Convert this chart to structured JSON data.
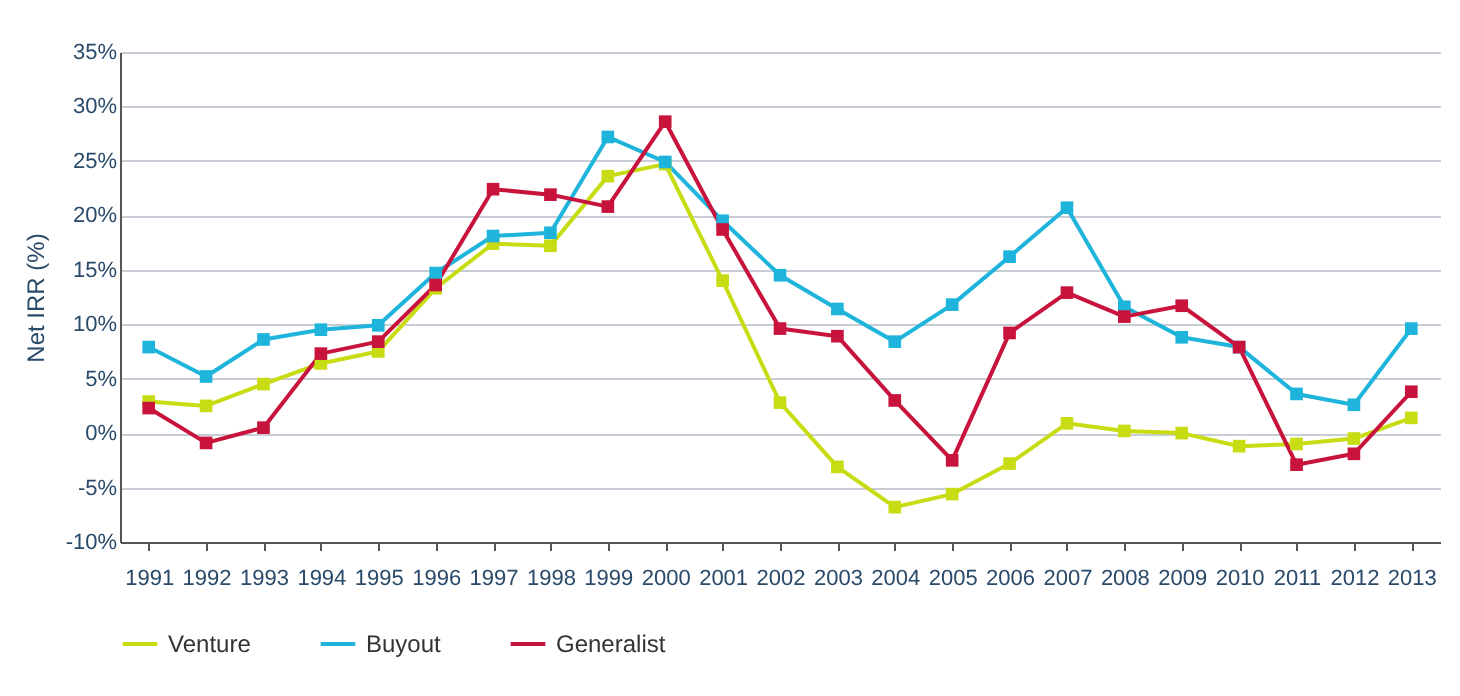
{
  "chart_data": {
    "type": "line",
    "ylabel": "Net IRR (%)",
    "categories": [
      "1991",
      "1992",
      "1993",
      "1994",
      "1995",
      "1996",
      "1997",
      "1998",
      "1999",
      "2000",
      "2001",
      "2002",
      "2003",
      "2004",
      "2005",
      "2006",
      "2007",
      "2008",
      "2009",
      "2010",
      "2011",
      "2012",
      "2013"
    ],
    "series": [
      {
        "name": "Venture",
        "color": "#c8dc14",
        "values": [
          2.9,
          2.5,
          4.5,
          6.4,
          7.5,
          13.3,
          17.4,
          17.2,
          23.6,
          24.7,
          14.0,
          2.8,
          -3.1,
          -6.8,
          -5.6,
          -2.8,
          0.9,
          0.2,
          0.0,
          -1.2,
          -1.0,
          -0.5,
          1.4
        ]
      },
      {
        "name": "Buyout",
        "color": "#1eb4dc",
        "values": [
          7.9,
          5.2,
          8.6,
          9.5,
          9.9,
          14.7,
          18.1,
          18.4,
          27.2,
          24.9,
          19.5,
          14.5,
          11.4,
          8.4,
          11.8,
          16.2,
          20.7,
          11.6,
          8.8,
          7.9,
          3.6,
          2.6,
          9.6
        ]
      },
      {
        "name": "Generalist",
        "color": "#c8143c",
        "values": [
          2.3,
          -0.9,
          0.5,
          7.3,
          8.4,
          13.6,
          22.4,
          21.9,
          20.8,
          28.6,
          18.7,
          9.6,
          8.9,
          3.0,
          -2.5,
          9.2,
          12.9,
          10.7,
          11.7,
          7.9,
          -2.9,
          -1.9,
          3.8
        ]
      }
    ],
    "ylim": [
      -10,
      35
    ],
    "yticks": [
      {
        "value": -10,
        "label": "-10%"
      },
      {
        "value": -5,
        "label": "-5%"
      },
      {
        "value": 0,
        "label": "0%"
      },
      {
        "value": 5,
        "label": "5%"
      },
      {
        "value": 10,
        "label": "10%"
      },
      {
        "value": 15,
        "label": "15%"
      },
      {
        "value": 20,
        "label": "20%"
      },
      {
        "value": 25,
        "label": "25%"
      },
      {
        "value": 30,
        "label": "30%"
      },
      {
        "value": 35,
        "label": "35%"
      }
    ],
    "grid": "y",
    "legend": "bottom",
    "marker": "square",
    "line_style": "solid"
  }
}
